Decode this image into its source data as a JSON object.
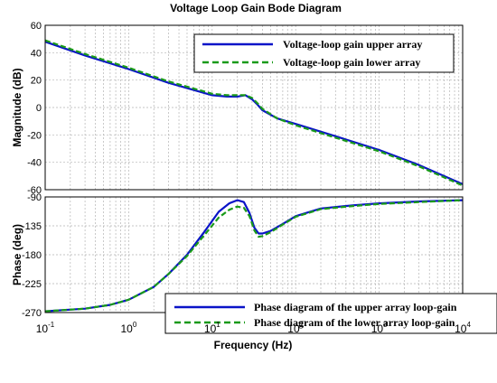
{
  "title": "Voltage Loop Gain Bode Diagram",
  "xlabel": "Frequency  (Hz)",
  "colors": {
    "upper": "#0a14c8",
    "lower": "#1a9a1a",
    "grid": "#b4b4b4"
  },
  "chart_data": [
    {
      "type": "line",
      "ylabel": "Magnitude (dB)",
      "xscale": "log",
      "xlim": [
        0.1,
        10000
      ],
      "ylim": [
        -60,
        60
      ],
      "yticks": [
        60,
        40,
        20,
        0,
        -20,
        -40,
        -60
      ],
      "grid": true,
      "legend_position": "top-right",
      "series": [
        {
          "name": "Voltage-loop gain upper array",
          "style": "solid",
          "x": [
            0.1,
            0.3,
            1,
            3,
            10,
            15,
            20,
            25,
            30,
            35,
            40,
            60,
            100,
            300,
            1000,
            3000,
            10000
          ],
          "y": [
            48,
            38,
            28,
            18,
            9,
            8,
            8,
            9,
            6,
            2,
            -2,
            -8,
            -12,
            -21,
            -31,
            -42,
            -56
          ]
        },
        {
          "name": "Voltage-loop gain lower array",
          "style": "dashed",
          "x": [
            0.1,
            0.3,
            1,
            3,
            10,
            15,
            20,
            25,
            30,
            35,
            40,
            60,
            100,
            300,
            1000,
            3000,
            10000
          ],
          "y": [
            49,
            39,
            29,
            19,
            10,
            9,
            9,
            9,
            7,
            3,
            -1,
            -8,
            -13,
            -22,
            -32,
            -43,
            -57
          ]
        }
      ]
    },
    {
      "type": "line",
      "ylabel": "Phase (deg)",
      "xscale": "log",
      "xlim": [
        0.1,
        10000
      ],
      "ylim": [
        -270,
        -90
      ],
      "yticks": [
        -90,
        -135,
        -180,
        -225,
        -270
      ],
      "grid": true,
      "legend_position": "bottom-right",
      "series": [
        {
          "name": "Phase diagram of the upper array loop-gain",
          "style": "solid",
          "x": [
            0.1,
            0.3,
            0.6,
            1,
            2,
            3,
            5,
            8,
            12,
            16,
            20,
            24,
            28,
            32,
            36,
            40,
            50,
            70,
            100,
            200,
            500,
            1000,
            3000,
            10000
          ],
          "y": [
            -268,
            -264,
            -258,
            -250,
            -230,
            -210,
            -180,
            -145,
            -113,
            -100,
            -95,
            -98,
            -115,
            -138,
            -147,
            -147,
            -143,
            -132,
            -120,
            -108,
            -103,
            -100,
            -97,
            -95
          ]
        },
        {
          "name": "Phase diagram of the lower array loop-gain",
          "style": "dashed",
          "x": [
            0.1,
            0.3,
            0.6,
            1,
            2,
            3,
            5,
            8,
            12,
            16,
            20,
            24,
            28,
            32,
            36,
            40,
            50,
            70,
            100,
            200,
            500,
            1000,
            3000,
            10000
          ],
          "y": [
            -268,
            -264,
            -258,
            -250,
            -230,
            -210,
            -182,
            -150,
            -122,
            -110,
            -105,
            -107,
            -120,
            -142,
            -152,
            -151,
            -145,
            -133,
            -121,
            -109,
            -104,
            -101,
            -98,
            -95
          ]
        }
      ]
    }
  ]
}
